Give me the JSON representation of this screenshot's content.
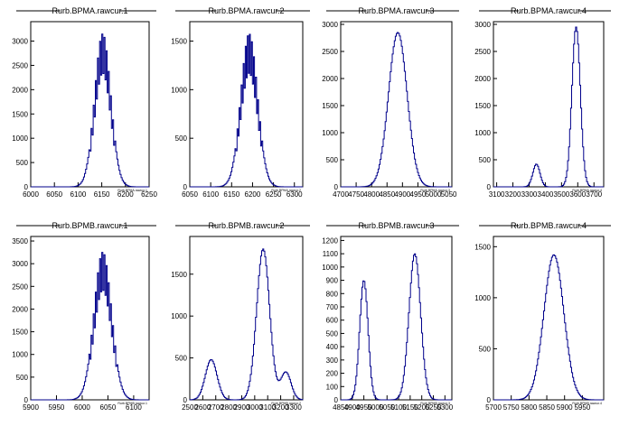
{
  "chart_data": [
    {
      "type": "bar",
      "title": "Rurb.BPMA.rawcur.1",
      "xlabel": "Rurb.BPMA.rawcur.1",
      "xlim": [
        6000,
        6250
      ],
      "ylim": [
        0,
        3400
      ],
      "xticks": [
        "6000",
        "6050",
        "6100",
        "6150",
        "6200",
        "6250"
      ],
      "yticks": [
        "0",
        "500",
        "1000",
        "1500",
        "2000",
        "2500",
        "3000"
      ],
      "peaks": [
        {
          "mu": 6152,
          "sigma": 17,
          "amp": 3000
        }
      ],
      "jagged": true
    },
    {
      "type": "bar",
      "title": "Rurb.BPMA.rawcur.2",
      "xlabel": "Rurb.BPMA.rawcur.2",
      "xlim": [
        6050,
        6320
      ],
      "ylim": [
        0,
        1700
      ],
      "xticks": [
        "6050",
        "6100",
        "6150",
        "6200",
        "6250",
        "6300"
      ],
      "yticks": [
        "0",
        "500",
        "1000",
        "1500"
      ],
      "peaks": [
        {
          "mu": 6192,
          "sigma": 20,
          "amp": 1500
        }
      ],
      "jagged": true
    },
    {
      "type": "bar",
      "title": "Rurb.BPMA.rawcur.3",
      "xlabel": "Rurb.BPMA.rawcur.3",
      "xlim": [
        4700,
        5060
      ],
      "ylim": [
        0,
        3050
      ],
      "xticks": [
        "4700",
        "4750",
        "4800",
        "4850",
        "4900",
        "4950",
        "5000",
        "5050"
      ],
      "yticks": [
        "0",
        "500",
        "1000",
        "1500",
        "2000",
        "2500",
        "3000"
      ],
      "peaks": [
        {
          "mu": 4885,
          "sigma": 30,
          "amp": 2850
        }
      ],
      "jagged": false
    },
    {
      "type": "bar",
      "title": "Rurb.BPMA.rawcur.4",
      "xlabel": "Rurb.BPMA.rawcur.4",
      "xlim": [
        3080,
        3760
      ],
      "ylim": [
        0,
        3050
      ],
      "xticks": [
        "3100",
        "3200",
        "3300",
        "3400",
        "3500",
        "3600",
        "3700"
      ],
      "yticks": [
        "0",
        "500",
        "1000",
        "1500",
        "2000",
        "2500",
        "3000"
      ],
      "peaks": [
        {
          "mu": 3590,
          "sigma": 26,
          "amp": 2950
        },
        {
          "mu": 3345,
          "sigma": 22,
          "amp": 420
        }
      ],
      "jagged": false
    },
    {
      "type": "bar",
      "title": "Rurb.BPMB.rawcur.1",
      "xlabel": "Rurb.BPMB.rawcur.1",
      "xlim": [
        5900,
        6130
      ],
      "ylim": [
        0,
        3600
      ],
      "xticks": [
        "5900",
        "5950",
        "6000",
        "6050",
        "6100"
      ],
      "yticks": [
        "0",
        "500",
        "1000",
        "1500",
        "2000",
        "2500",
        "3000",
        "3500"
      ],
      "peaks": [
        {
          "mu": 6040,
          "sigma": 17,
          "amp": 3100
        }
      ],
      "jagged": true
    },
    {
      "type": "bar",
      "title": "Rurb.BPMB.rawcur.2",
      "xlabel": "Rurb.BPMB.rawcur.2",
      "xlim": [
        2500,
        3370
      ],
      "ylim": [
        0,
        1950
      ],
      "xticks": [
        "2500",
        "2600",
        "2700",
        "2800",
        "2900",
        "3000",
        "3100",
        "3200",
        "3300"
      ],
      "yticks": [
        "0",
        "500",
        "1000",
        "1500"
      ],
      "peaks": [
        {
          "mu": 3065,
          "sigma": 50,
          "amp": 1800
        },
        {
          "mu": 2665,
          "sigma": 45,
          "amp": 480
        },
        {
          "mu": 3240,
          "sigma": 40,
          "amp": 330
        }
      ],
      "jagged": false
    },
    {
      "type": "bar",
      "title": "Rurb.BPMB.rawcur.3",
      "xlabel": "Rurb.BPMB.rawcur.3",
      "xlim": [
        4850,
        5330
      ],
      "ylim": [
        0,
        1230
      ],
      "xticks": [
        "4850",
        "4900",
        "4950",
        "5000",
        "5050",
        "5100",
        "5150",
        "5200",
        "5250",
        "5300"
      ],
      "yticks": [
        "0",
        "100",
        "200",
        "300",
        "400",
        "500",
        "600",
        "700",
        "800",
        "900",
        "1000",
        "1100",
        "1200"
      ],
      "peaks": [
        {
          "mu": 5170,
          "sigma": 25,
          "amp": 1100
        },
        {
          "mu": 4950,
          "sigma": 18,
          "amp": 900
        }
      ],
      "jagged": false
    },
    {
      "type": "bar",
      "title": "Rurb.BPMB.rawcur.4",
      "xlabel": "Rurb.BPMB.rawcur.4",
      "xlim": [
        5700,
        6010
      ],
      "ylim": [
        0,
        1600
      ],
      "xticks": [
        "5700",
        "5750",
        "5800",
        "5850",
        "5900",
        "5950"
      ],
      "yticks": [
        "0",
        "500",
        "1000",
        "1500"
      ],
      "peaks": [
        {
          "mu": 5870,
          "sigma": 28,
          "amp": 1420
        }
      ],
      "jagged": false
    }
  ]
}
